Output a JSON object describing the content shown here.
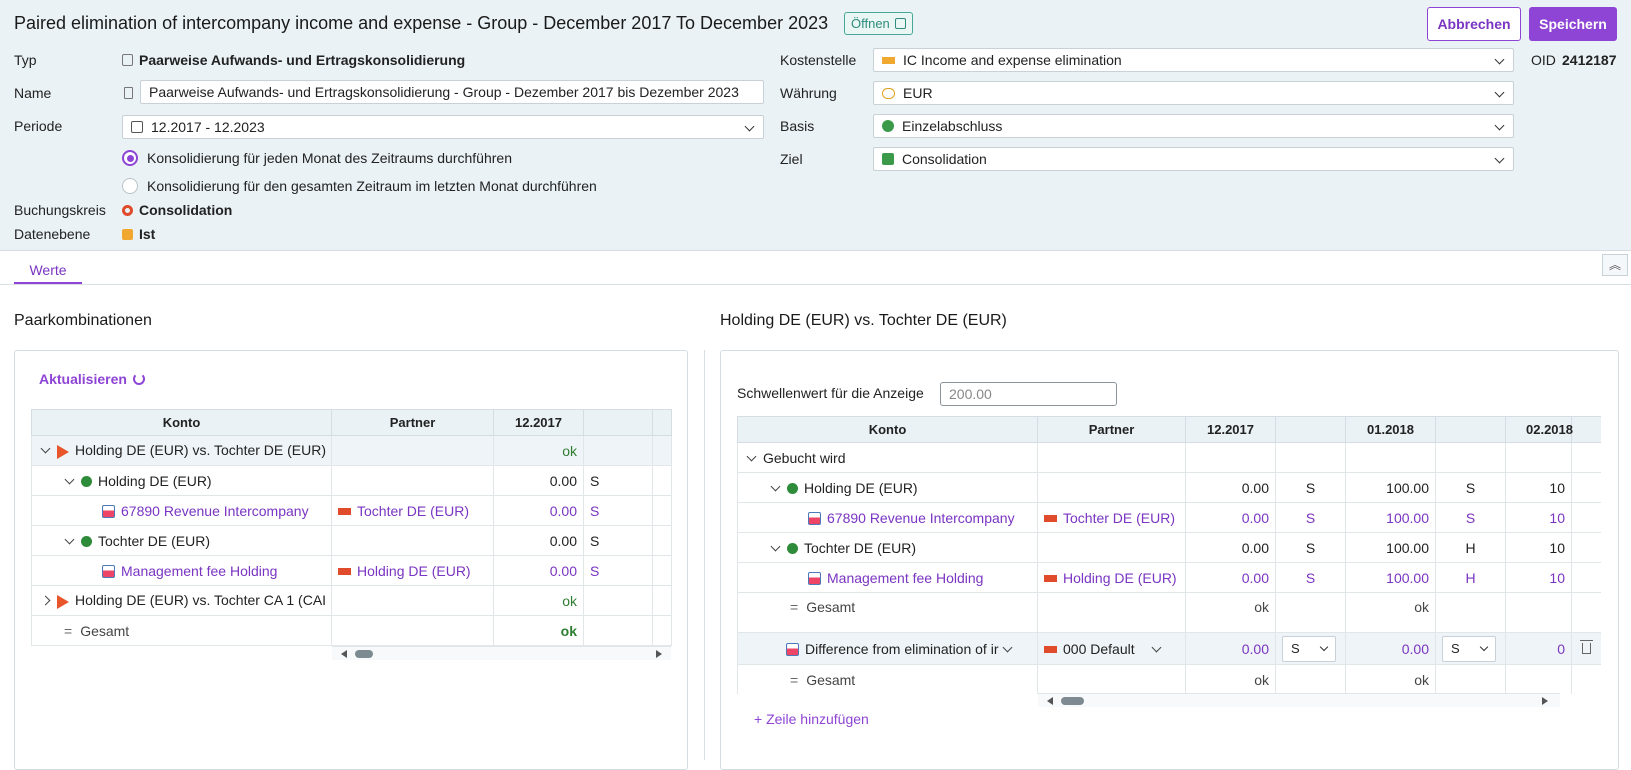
{
  "header": {
    "title": "Paired elimination of intercompany income and expense - Group - December 2017 To December 2023",
    "status": "Öffnen",
    "cancel_label": "Abbrechen",
    "save_label": "Speichern",
    "oid_label": "OID",
    "oid_value": "2412187"
  },
  "form": {
    "typ_label": "Typ",
    "typ_value": "Paarweise Aufwands- und Ertragskonsolidierung",
    "name_label": "Name",
    "name_value": "Paarweise Aufwands- und Ertragskonsolidierung - Group - Dezember 2017 bis Dezember 2023",
    "periode_label": "Periode",
    "periode_value": "12.2017 - 12.2023",
    "radio1": "Konsolidierung für jeden Monat des Zeitraums durchführen",
    "radio2": "Konsolidierung für den gesamten Zeitraum im letzten Monat durchführen",
    "buchungskreis_label": "Buchungskreis",
    "buchungskreis_value": "Consolidation",
    "datenebene_label": "Datenebene",
    "datenebene_value": "Ist",
    "kostenstelle_label": "Kostenstelle",
    "kostenstelle_value": "IC Income and expense elimination",
    "waehrung_label": "Währung",
    "waehrung_value": "EUR",
    "basis_label": "Basis",
    "basis_value": "Einzelabschluss",
    "ziel_label": "Ziel",
    "ziel_value": "Consolidation"
  },
  "tabs": {
    "werte": "Werte"
  },
  "left": {
    "title": "Paarkombinationen",
    "refresh": "Aktualisieren",
    "columns": [
      "Konto",
      "Partner",
      "12.2017"
    ],
    "rows": {
      "r1": {
        "konto": "Holding DE (EUR) vs. Tochter DE (EUR)",
        "v": "ok"
      },
      "r2": {
        "konto": "Holding DE (EUR)",
        "v": "0.00",
        "s": "S"
      },
      "r3": {
        "konto": "67890 Revenue Intercompany",
        "partner": "Tochter DE (EUR)",
        "v": "0.00",
        "s": "S"
      },
      "r4": {
        "konto": "Tochter DE (EUR)",
        "v": "0.00",
        "s": "S"
      },
      "r5": {
        "konto": "Management fee Holding",
        "partner": "Holding DE (EUR)",
        "v": "0.00",
        "s": "S"
      },
      "r6": {
        "konto": "Holding DE (EUR) vs. Tochter CA 1 (CAI",
        "v": "ok"
      },
      "r7": {
        "konto": "Gesamt",
        "v": "ok"
      }
    }
  },
  "right": {
    "title": "Holding DE (EUR) vs. Tochter DE (EUR)",
    "threshold_label": "Schwellenwert für die Anzeige",
    "threshold_placeholder": "200.00",
    "columns": [
      "Konto",
      "Partner",
      "12.2017",
      "01.2018",
      "02.2018"
    ],
    "rows": {
      "g": {
        "konto": "Gebucht wird"
      },
      "h": {
        "konto": "Holding DE (EUR)",
        "v1": "0.00",
        "s1": "S",
        "v2": "100.00",
        "s2": "S",
        "v3": "10"
      },
      "h1": {
        "konto": "67890 Revenue Intercompany",
        "partner": "Tochter DE (EUR)",
        "v1": "0.00",
        "s1": "S",
        "v2": "100.00",
        "s2": "S",
        "v3": "10"
      },
      "t": {
        "konto": "Tochter DE (EUR)",
        "v1": "0.00",
        "s1": "S",
        "v2": "100.00",
        "s2": "H",
        "v3": "10"
      },
      "t1": {
        "konto": "Management fee Holding",
        "partner": "Holding DE (EUR)",
        "v1": "0.00",
        "s1": "S",
        "v2": "100.00",
        "s2": "H",
        "v3": "10"
      },
      "ges1": {
        "konto": "Gesamt",
        "v1": "ok",
        "v2": "ok"
      },
      "diff": {
        "konto": "Difference from elimination of ir",
        "partner": "000 Default",
        "v1": "0.00",
        "s1": "S",
        "v2": "0.00",
        "s2": "S",
        "v3": "0"
      },
      "ges2": {
        "konto": "Gesamt",
        "v1": "ok",
        "v2": "ok"
      }
    },
    "add_row": "+ Zeile hinzufügen"
  }
}
